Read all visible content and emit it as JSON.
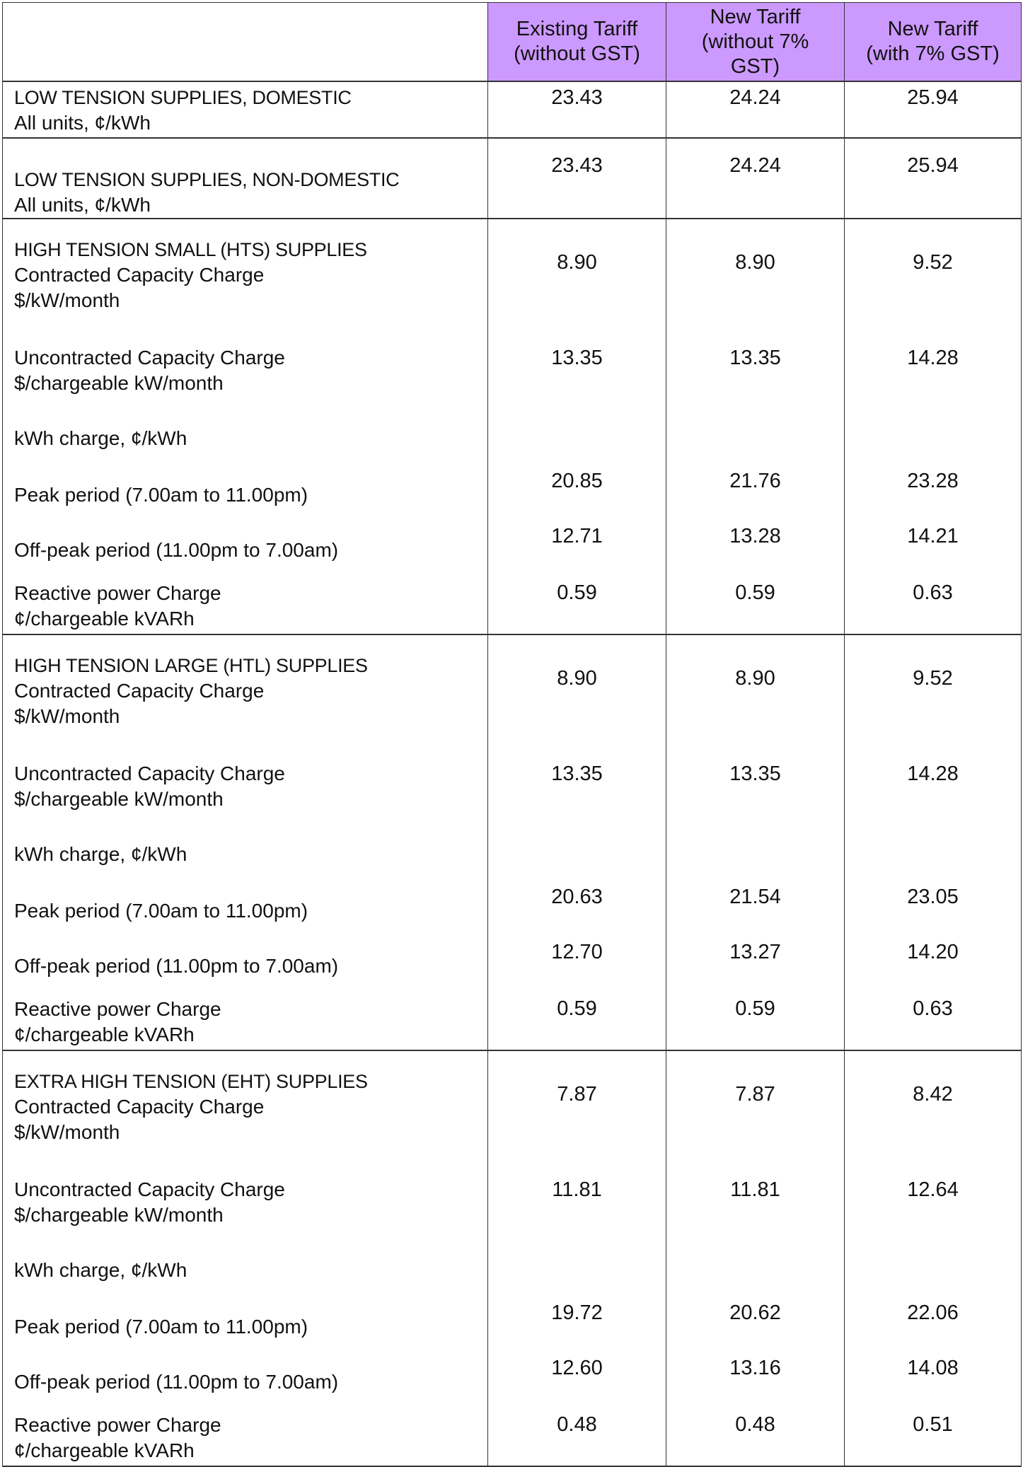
{
  "header": {
    "columns": [
      "",
      "Existing Tariff (without GST)",
      "New Tariff (without 7% GST)",
      "New Tariff (with 7% GST)"
    ],
    "column_lines": [
      [],
      [
        "Existing Tariff",
        "(without GST)"
      ],
      [
        "New Tariff",
        "(without 7%",
        "GST)"
      ],
      [
        "New Tariff",
        "(with 7% GST)"
      ]
    ],
    "color": "#cc99ff"
  },
  "sections": [
    {
      "rows": [
        {
          "kind": "lt1",
          "lines": [
            "LOW TENSION SUPPLIES, DOMESTIC",
            "All units, ¢/kWh"
          ],
          "values": [
            "23.43",
            "24.24",
            "25.94"
          ]
        }
      ]
    },
    {
      "rows": [
        {
          "kind": "lt2",
          "lines": [
            "LOW TENSION SUPPLIES, NON-DOMESTIC",
            "All units, ¢/kWh"
          ],
          "values": [
            "23.43",
            "24.24",
            "25.94"
          ]
        }
      ]
    },
    {
      "rows": [
        {
          "kind": "b1",
          "lines": [
            "HIGH TENSION SMALL (HTS) SUPPLIES",
            "Contracted Capacity Charge",
            "$/kW/month"
          ],
          "values": [
            "8.90",
            "8.90",
            "9.52"
          ]
        },
        {
          "kind": "b2",
          "lines": [
            "Uncontracted Capacity Charge",
            "$/chargeable kW/month"
          ],
          "values": [
            "13.35",
            "13.35",
            "14.28"
          ]
        },
        {
          "kind": "kwh",
          "lines": [
            "kWh charge, ¢/kWh"
          ],
          "values": [
            "",
            "",
            ""
          ]
        },
        {
          "kind": "pk",
          "lines": [
            "Peak period (7.00am to 11.00pm)"
          ],
          "values": [
            "20.85",
            "21.76",
            "23.28"
          ]
        },
        {
          "kind": "pk",
          "lines": [
            "Off-peak period (11.00pm to 7.00am)"
          ],
          "values": [
            "12.71",
            "13.28",
            "14.21"
          ]
        },
        {
          "kind": "rp",
          "lines": [
            "Reactive power Charge",
            "¢/chargeable kVARh"
          ],
          "values": [
            "0.59",
            "0.59",
            "0.63"
          ]
        }
      ]
    },
    {
      "rows": [
        {
          "kind": "b1",
          "lines": [
            "HIGH TENSION LARGE (HTL) SUPPLIES",
            "Contracted Capacity Charge",
            "$/kW/month"
          ],
          "values": [
            "8.90",
            "8.90",
            "9.52"
          ]
        },
        {
          "kind": "b2",
          "lines": [
            "Uncontracted Capacity Charge",
            "$/chargeable kW/month"
          ],
          "values": [
            "13.35",
            "13.35",
            "14.28"
          ]
        },
        {
          "kind": "kwh",
          "lines": [
            "kWh charge, ¢/kWh"
          ],
          "values": [
            "",
            "",
            ""
          ]
        },
        {
          "kind": "pk",
          "lines": [
            "Peak period (7.00am to 11.00pm)"
          ],
          "values": [
            "20.63",
            "21.54",
            "23.05"
          ]
        },
        {
          "kind": "pk",
          "lines": [
            "Off-peak period (11.00pm to 7.00am)"
          ],
          "values": [
            "12.70",
            "13.27",
            "14.20"
          ]
        },
        {
          "kind": "rp",
          "lines": [
            "Reactive power Charge",
            "¢/chargeable kVARh"
          ],
          "values": [
            "0.59",
            "0.59",
            "0.63"
          ]
        }
      ]
    },
    {
      "rows": [
        {
          "kind": "b1",
          "lines": [
            "EXTRA HIGH TENSION (EHT) SUPPLIES",
            "Contracted Capacity Charge",
            "$/kW/month"
          ],
          "values": [
            "7.87",
            "7.87",
            "8.42"
          ]
        },
        {
          "kind": "b2",
          "lines": [
            "Uncontracted Capacity Charge",
            "$/chargeable kW/month"
          ],
          "values": [
            "11.81",
            "11.81",
            "12.64"
          ]
        },
        {
          "kind": "kwh",
          "lines": [
            "kWh charge, ¢/kWh"
          ],
          "values": [
            "",
            "",
            ""
          ]
        },
        {
          "kind": "pk",
          "lines": [
            "Peak period (7.00am to 11.00pm)"
          ],
          "values": [
            "19.72",
            "20.62",
            "22.06"
          ]
        },
        {
          "kind": "pk",
          "lines": [
            "Off-peak period (11.00pm to 7.00am)"
          ],
          "values": [
            "12.60",
            "13.16",
            "14.08"
          ]
        },
        {
          "kind": "rp",
          "lines": [
            "Reactive power Charge",
            "¢/chargeable kVARh"
          ],
          "values": [
            "0.48",
            "0.48",
            "0.51"
          ]
        }
      ]
    }
  ]
}
